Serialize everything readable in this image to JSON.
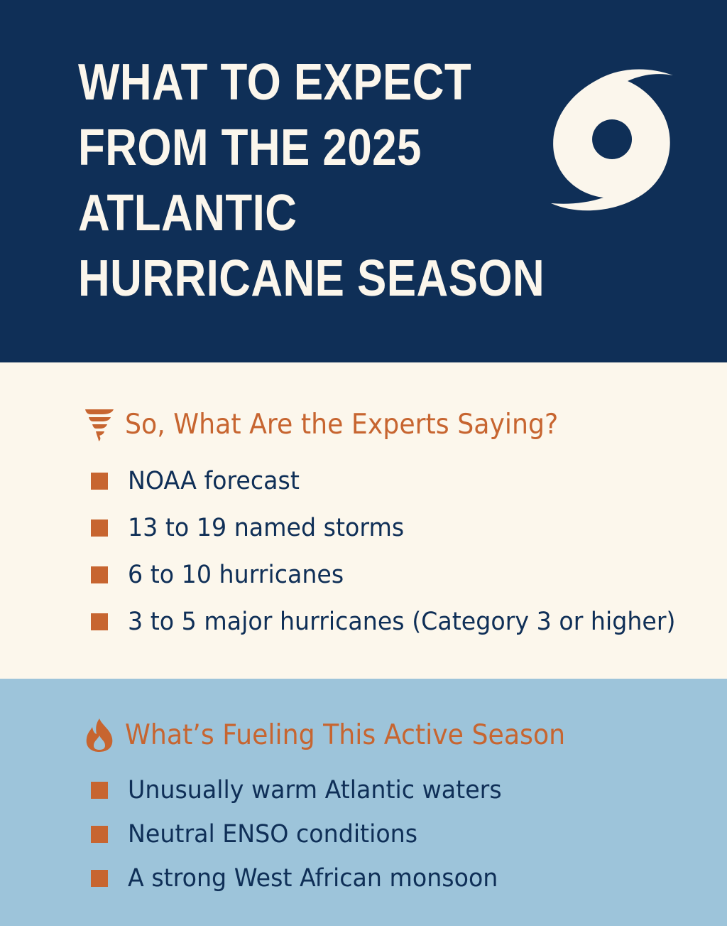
{
  "header": {
    "title_lines": [
      "WHAT TO EXPECT",
      "FROM THE 2025",
      "ATLANTIC",
      "HURRICANE SEASON"
    ],
    "icon": "hurricane-symbol-icon"
  },
  "experts": {
    "heading": "So, What Are the Experts Saying?",
    "icon": "tornado-icon",
    "items": [
      "NOAA forecast",
      "13 to 19 named storms",
      "6 to 10 hurricanes",
      "3 to 5 major hurricanes (Category 3 or higher)"
    ]
  },
  "fuel": {
    "heading": "What’s Fueling This Active Season",
    "icon": "flame-icon",
    "items": [
      "Unusually warm Atlantic waters",
      "Neutral ENSO conditions",
      "A strong West African monsoon"
    ]
  },
  "colors": {
    "header_background": "#0f2f57",
    "header_text": "#fbf6ec",
    "experts_background": "#fcf7ec",
    "fuel_background": "#9dc4da",
    "accent_orange": "#c76530",
    "body_text": "#0f2f57"
  }
}
